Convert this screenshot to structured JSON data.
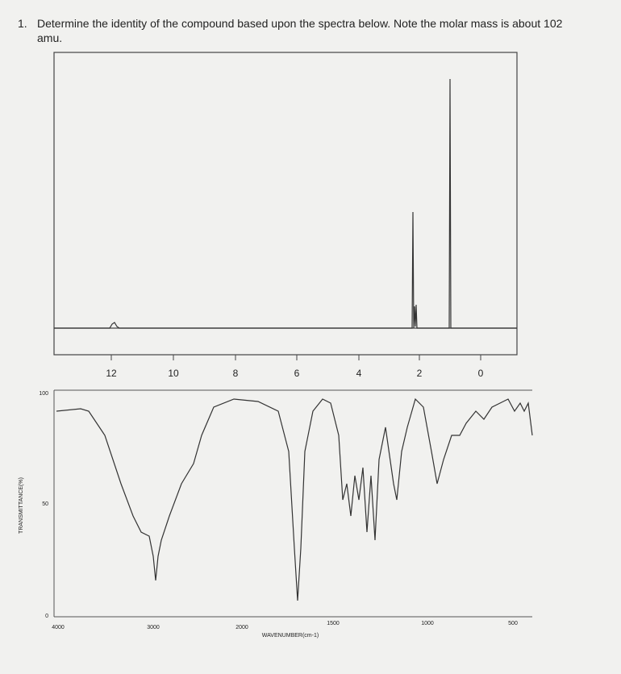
{
  "question": {
    "number": "1.",
    "text_line1": "Determine the identity of the compound based upon the spectra below.  Note the molar mass is about 102",
    "text_line2": "amu."
  },
  "nmr": {
    "ticks": [
      "12",
      "10",
      "8",
      "6",
      "4",
      "2",
      "0"
    ]
  },
  "ir": {
    "y_title": "TRANSMITTANCE(%)",
    "y_ticks": [
      "100",
      "50",
      "0"
    ],
    "x_ticks": [
      "4000",
      "3000",
      "2000",
      "1500",
      "1000",
      "500"
    ],
    "x_title": "WAVENUMBER(cm-1)"
  }
}
